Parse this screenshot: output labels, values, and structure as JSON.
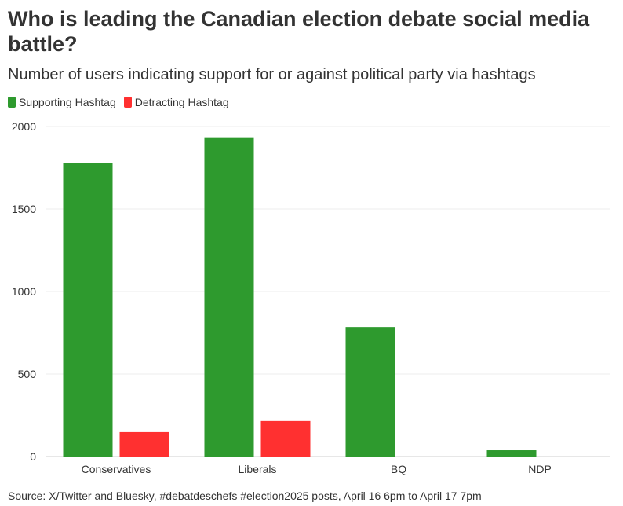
{
  "header": {
    "title": "Who is leading the Canadian election debate social media battle?",
    "subtitle": "Number of users indicating support for or against political party via hashtags"
  },
  "legend": {
    "items": [
      {
        "label": "Supporting Hashtag",
        "color": "#2e9a2e"
      },
      {
        "label": "Detracting Hashtag",
        "color": "#ff3030"
      }
    ]
  },
  "footer": {
    "source": "Source: X/Twitter and Bluesky, #debatdeschefs #election2025 posts, April 16 6pm to April 17 7pm"
  },
  "chart_data": {
    "type": "bar",
    "title": "Who is leading the Canadian election debate social media battle?",
    "subtitle": "Number of users indicating support for or against political party via hashtags",
    "categories": [
      "Conservatives",
      "Liberals",
      "BQ",
      "NDP"
    ],
    "series": [
      {
        "name": "Supporting Hashtag",
        "color": "#2e9a2e",
        "values": [
          1780,
          1935,
          785,
          38
        ]
      },
      {
        "name": "Detracting Hashtag",
        "color": "#ff3030",
        "values": [
          148,
          215,
          0,
          0
        ]
      }
    ],
    "ylim": [
      0,
      2000
    ],
    "yticks": [
      0,
      500,
      1000,
      1500,
      2000
    ],
    "grid": true,
    "legend_position": "top-left"
  }
}
